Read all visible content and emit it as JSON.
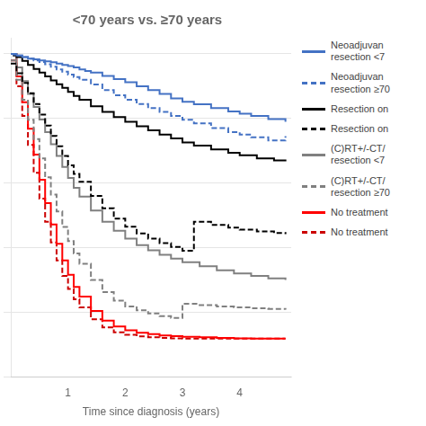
{
  "chart_data": {
    "type": "step",
    "title": "<70 years vs. ≥70 years",
    "xlabel": "Time since diagnosis (years)",
    "xlim": [
      0,
      4.9
    ],
    "ylim": [
      0,
      1.05
    ],
    "xticks": [
      1,
      2,
      3,
      4
    ],
    "yticks": [
      0,
      0.2,
      0.4,
      0.6,
      0.8,
      1.0
    ],
    "grid": "y",
    "tick_labels": "x",
    "legend": "right",
    "series": [
      {
        "name": "Neoadjuvan\nresection <7",
        "color": "#4472c4",
        "line_style": "solid",
        "x": [
          0,
          0.05,
          0.1,
          0.2,
          0.3,
          0.4,
          0.5,
          0.6,
          0.7,
          0.8,
          0.9,
          1.0,
          1.1,
          1.2,
          1.3,
          1.4,
          1.6,
          1.8,
          2.0,
          2.2,
          2.4,
          2.6,
          2.8,
          3.0,
          3.2,
          3.5,
          3.8,
          4.0,
          4.2,
          4.5,
          4.8
        ],
        "values": [
          1.0,
          1.0,
          0.995,
          0.99,
          0.985,
          0.983,
          0.98,
          0.977,
          0.974,
          0.97,
          0.966,
          0.962,
          0.958,
          0.952,
          0.947,
          0.942,
          0.932,
          0.922,
          0.912,
          0.9,
          0.888,
          0.876,
          0.862,
          0.852,
          0.844,
          0.832,
          0.822,
          0.815,
          0.808,
          0.798,
          0.79
        ]
      },
      {
        "name": "Neoadjuvan\nresection ≥70",
        "color": "#4472c4",
        "line_style": "dashed",
        "x": [
          0,
          0.05,
          0.1,
          0.2,
          0.3,
          0.4,
          0.5,
          0.6,
          0.7,
          0.8,
          0.9,
          1.0,
          1.1,
          1.2,
          1.4,
          1.6,
          1.8,
          2.0,
          2.2,
          2.4,
          2.6,
          2.8,
          3.0,
          3.2,
          3.5,
          3.8,
          4.0,
          4.2,
          4.5,
          4.8
        ],
        "values": [
          1.0,
          0.998,
          0.995,
          0.99,
          0.985,
          0.98,
          0.975,
          0.968,
          0.96,
          0.952,
          0.945,
          0.936,
          0.928,
          0.92,
          0.905,
          0.888,
          0.872,
          0.858,
          0.845,
          0.832,
          0.82,
          0.808,
          0.796,
          0.785,
          0.77,
          0.758,
          0.75,
          0.742,
          0.732,
          0.745
        ]
      },
      {
        "name": "Resection on",
        "color": "#000000",
        "line_style": "solid",
        "x": [
          0,
          0.05,
          0.1,
          0.2,
          0.3,
          0.4,
          0.5,
          0.6,
          0.7,
          0.8,
          0.9,
          1.0,
          1.1,
          1.2,
          1.4,
          1.6,
          1.8,
          2.0,
          2.2,
          2.4,
          2.6,
          2.8,
          3.0,
          3.2,
          3.5,
          3.8,
          4.0,
          4.3,
          4.6,
          4.8
        ],
        "values": [
          1.0,
          0.995,
          0.99,
          0.978,
          0.966,
          0.953,
          0.942,
          0.93,
          0.918,
          0.906,
          0.895,
          0.882,
          0.87,
          0.858,
          0.838,
          0.82,
          0.804,
          0.79,
          0.776,
          0.763,
          0.75,
          0.738,
          0.726,
          0.716,
          0.704,
          0.694,
          0.686,
          0.676,
          0.67,
          0.667
        ]
      },
      {
        "name": "Resection on",
        "color": "#000000",
        "line_style": "dashed",
        "x": [
          0,
          0.1,
          0.2,
          0.3,
          0.4,
          0.5,
          0.6,
          0.7,
          0.8,
          0.9,
          1.0,
          1.1,
          1.2,
          1.4,
          1.6,
          1.8,
          2.0,
          2.2,
          2.4,
          2.6,
          2.8,
          3.0,
          3.2,
          3.5,
          3.8,
          4.0,
          4.3,
          4.6,
          4.8
        ],
        "values": [
          0.97,
          0.94,
          0.91,
          0.878,
          0.845,
          0.812,
          0.778,
          0.746,
          0.714,
          0.684,
          0.655,
          0.628,
          0.604,
          0.56,
          0.522,
          0.49,
          0.465,
          0.444,
          0.428,
          0.414,
          0.402,
          0.39,
          0.48,
          0.47,
          0.462,
          0.456,
          0.45,
          0.445,
          0.442
        ]
      },
      {
        "name": "(C)RT+/-CT/\nresection <7",
        "color": "#808080",
        "line_style": "solid",
        "x": [
          0,
          0.1,
          0.2,
          0.3,
          0.4,
          0.5,
          0.6,
          0.7,
          0.8,
          0.9,
          1.0,
          1.1,
          1.2,
          1.4,
          1.6,
          1.8,
          2.0,
          2.2,
          2.4,
          2.6,
          2.8,
          3.0,
          3.3,
          3.6,
          3.9,
          4.2,
          4.5,
          4.8
        ],
        "values": [
          1.0,
          0.958,
          0.916,
          0.876,
          0.836,
          0.797,
          0.758,
          0.72,
          0.684,
          0.65,
          0.616,
          0.585,
          0.558,
          0.515,
          0.48,
          0.452,
          0.428,
          0.408,
          0.392,
          0.378,
          0.366,
          0.355,
          0.342,
          0.33,
          0.32,
          0.312,
          0.305,
          0.3
        ]
      },
      {
        "name": "(C)RT+/-CT/\nresection ≥70",
        "color": "#808080",
        "line_style": "dashed",
        "x": [
          0,
          0.1,
          0.2,
          0.3,
          0.4,
          0.5,
          0.6,
          0.7,
          0.8,
          0.9,
          1.0,
          1.1,
          1.2,
          1.4,
          1.6,
          1.8,
          2.0,
          2.2,
          2.4,
          2.6,
          2.8,
          3.0,
          3.3,
          3.6,
          3.9,
          4.2,
          4.5,
          4.8
        ],
        "values": [
          0.98,
          0.92,
          0.858,
          0.796,
          0.736,
          0.676,
          0.618,
          0.564,
          0.512,
          0.464,
          0.42,
          0.382,
          0.35,
          0.3,
          0.262,
          0.236,
          0.218,
          0.206,
          0.196,
          0.188,
          0.182,
          0.226,
          0.222,
          0.218,
          0.215,
          0.212,
          0.21,
          0.208
        ]
      },
      {
        "name": "No treatment",
        "color": "#ff0000",
        "line_style": "solid",
        "x": [
          0,
          0.1,
          0.2,
          0.3,
          0.4,
          0.5,
          0.6,
          0.7,
          0.8,
          0.9,
          1.0,
          1.1,
          1.2,
          1.4,
          1.6,
          1.8,
          2.0,
          2.2,
          2.4,
          2.6,
          2.8,
          3.0,
          3.3,
          3.6,
          3.9,
          4.2,
          4.5,
          4.8
        ],
        "values": [
          1.0,
          0.93,
          0.85,
          0.768,
          0.688,
          0.61,
          0.538,
          0.472,
          0.412,
          0.36,
          0.316,
          0.278,
          0.248,
          0.204,
          0.174,
          0.156,
          0.144,
          0.136,
          0.132,
          0.128,
          0.126,
          0.124,
          0.122,
          0.12,
          0.119,
          0.118,
          0.118,
          0.118
        ]
      },
      {
        "name": "No treatment",
        "color": "#cc0000",
        "line_style": "dashed",
        "x": [
          0,
          0.1,
          0.2,
          0.3,
          0.4,
          0.5,
          0.6,
          0.7,
          0.8,
          0.9,
          1.0,
          1.1,
          1.2,
          1.4,
          1.6,
          1.8,
          2.0,
          2.2,
          2.4,
          2.6,
          2.8,
          3.0,
          3.3,
          3.6,
          3.9,
          4.2,
          4.5,
          4.8
        ],
        "values": [
          0.98,
          0.9,
          0.808,
          0.718,
          0.632,
          0.552,
          0.48,
          0.416,
          0.36,
          0.312,
          0.272,
          0.24,
          0.215,
          0.178,
          0.153,
          0.138,
          0.13,
          0.125,
          0.122,
          0.12,
          0.119,
          0.118,
          0.118,
          0.118,
          0.118,
          0.118,
          0.118,
          0.118
        ]
      }
    ]
  }
}
